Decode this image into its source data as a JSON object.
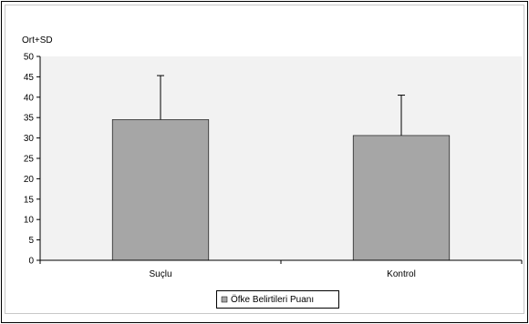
{
  "chart_data": {
    "type": "bar",
    "ylabel": "Ort+SD",
    "categories": [
      "Suçlu",
      "Kontrol"
    ],
    "series": [
      {
        "name": "Öfke Belirtileri Puanı",
        "values": [
          34.5,
          30.6
        ],
        "error_plus": [
          10.8,
          9.9
        ]
      }
    ],
    "ylim": [
      0,
      50
    ],
    "yticks": [
      0,
      5,
      10,
      15,
      20,
      25,
      30,
      35,
      40,
      45,
      50
    ],
    "grid": false,
    "legend": "bottom-center",
    "colors": {
      "bar_fill": "#a6a6a6",
      "plot_bg": "#f2f2f2",
      "axis": "#000000"
    }
  }
}
